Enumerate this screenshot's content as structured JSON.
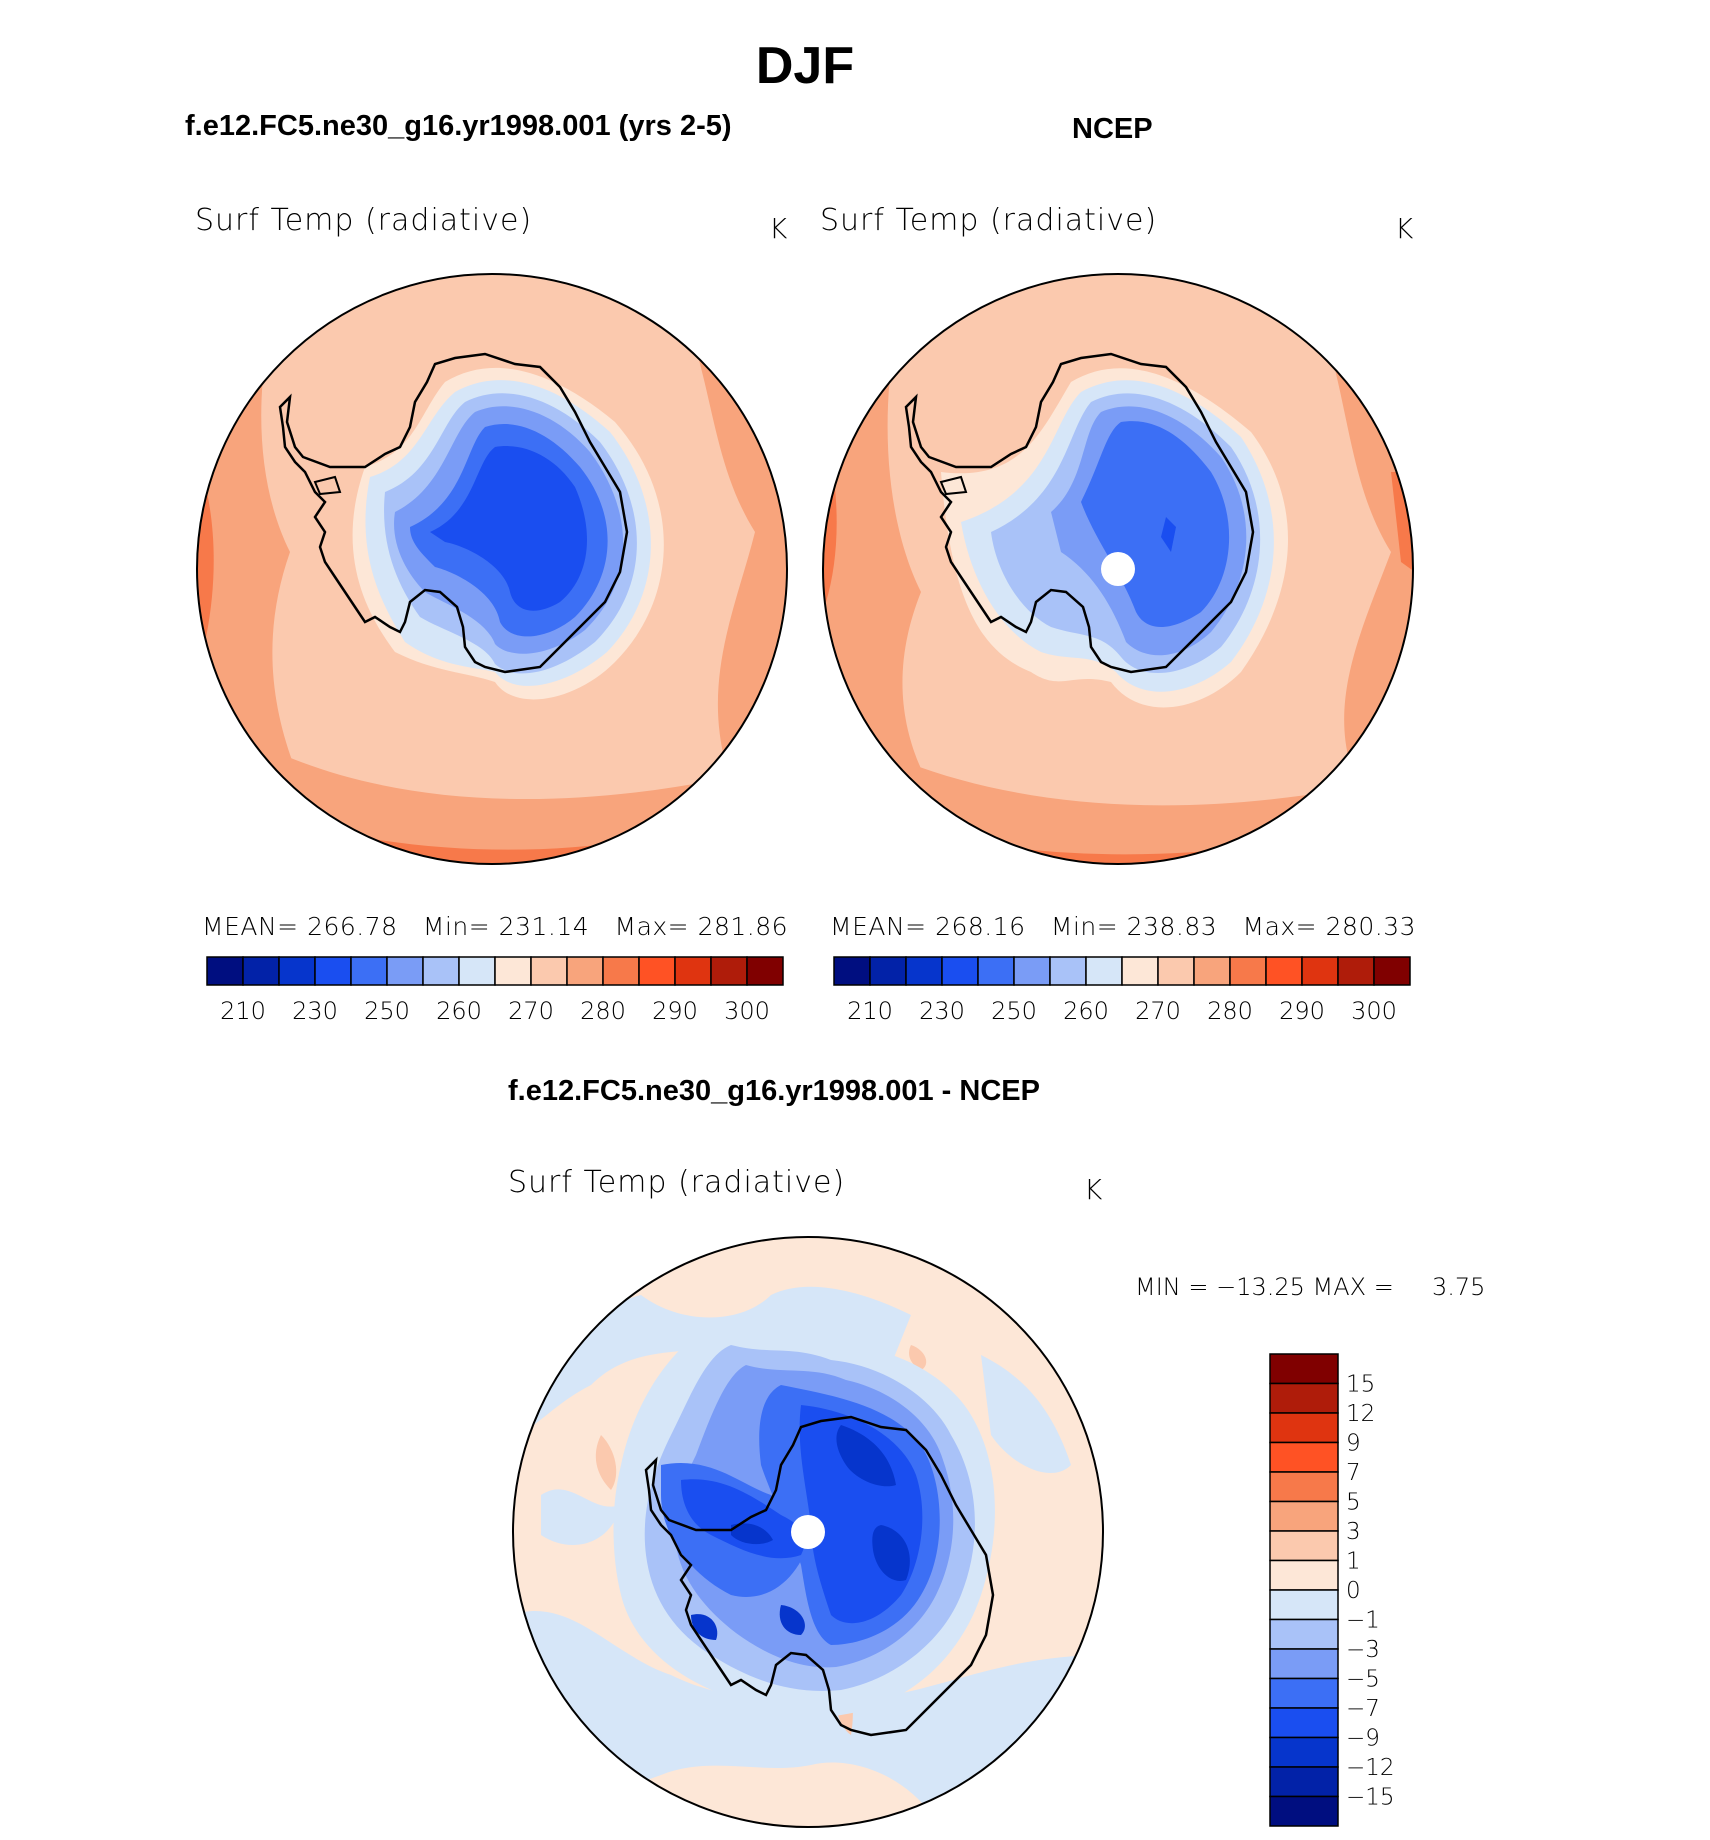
{
  "season_title": "DJF",
  "panels": [
    {
      "id": "model",
      "title": "f.e12.FC5.ne30_g16.yr1998.001 (yrs 2-5)",
      "variable": "Surf Temp (radiative)",
      "units": "K",
      "stats": {
        "mean_label": "MEAN=",
        "mean": "266.78",
        "min_label": "Min=",
        "min": "231.14",
        "max_label": "Max=",
        "max": "281.86"
      },
      "pole_hole": false
    },
    {
      "id": "ncep",
      "title": "NCEP",
      "variable": "Surf Temp (radiative)",
      "units": "K",
      "stats": {
        "mean_label": "MEAN=",
        "mean": "268.16",
        "min_label": "Min=",
        "min": "238.83",
        "max_label": "Max=",
        "max": "280.33"
      },
      "pole_hole": true
    }
  ],
  "abs_colorbar": {
    "colors": [
      "#000e80",
      "#0222a8",
      "#0635cc",
      "#1a4ef0",
      "#3c6ff5",
      "#7a9cf6",
      "#a9c2f8",
      "#d6e6f8",
      "#fde7d7",
      "#fbc9ae",
      "#f8a47c",
      "#f7794a",
      "#ff5224",
      "#df3410",
      "#af1c0a",
      "#800000"
    ],
    "tick_labels": [
      "210",
      "230",
      "250",
      "260",
      "270",
      "280",
      "290",
      "300"
    ]
  },
  "diff_panel": {
    "title": "f.e12.FC5.ne30_g16.yr1998.001 - NCEP",
    "variable": "Surf Temp (radiative)",
    "units": "K",
    "minmax_text": "MIN = −13.25 MAX =     3.75",
    "pole_hole": true
  },
  "diff_colorbar": {
    "colors_top_to_bottom": [
      "#800000",
      "#af1c0a",
      "#df3410",
      "#ff5224",
      "#f7794a",
      "#f8a47c",
      "#fbc9ae",
      "#fde7d7",
      "#d6e6f8",
      "#a9c2f8",
      "#7a9cf6",
      "#3c6ff5",
      "#1a4ef0",
      "#0635cc",
      "#0222a8",
      "#000e80"
    ],
    "tick_labels": [
      "15",
      "12",
      "9",
      "7",
      "5",
      "3",
      "1",
      "0",
      "−1",
      "−3",
      "−5",
      "−7",
      "−9",
      "−12",
      "−15"
    ]
  },
  "colors": {
    "ocean_pale": "#fbc9ae",
    "ocean_warm": "#f8a47c",
    "ocean_warmer": "#f7794a",
    "coast_band": "#fde7d7",
    "ice_1": "#d6e6f8",
    "ice_2": "#a9c2f8",
    "ice_3": "#7a9cf6",
    "ice_4": "#3c6ff5",
    "ice_5": "#1a4ef0",
    "ice_6": "#0635cc",
    "diff_bg": "#fde7d7",
    "coastline": "#000000"
  }
}
